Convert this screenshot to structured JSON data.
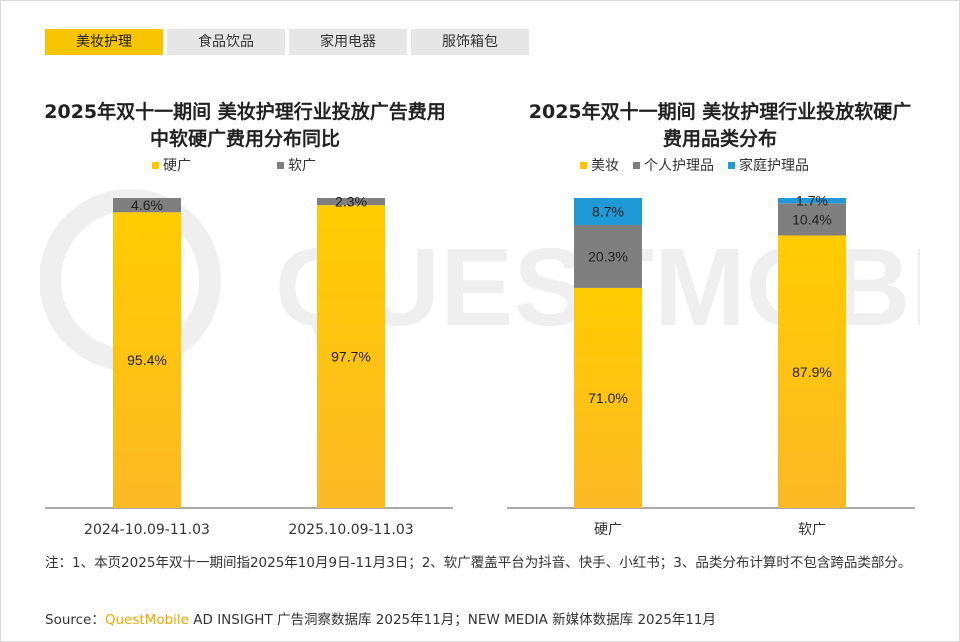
{
  "tabs": [
    {
      "label": "美妆护理",
      "active": true
    },
    {
      "label": "食品饮品",
      "active": false
    },
    {
      "label": "家用电器",
      "active": false
    },
    {
      "label": "服饰箱包",
      "active": false
    }
  ],
  "colors": {
    "accent": "#f7c400",
    "bar_yellow_top": "#ffcc00",
    "bar_yellow_bottom": "#fbb925",
    "gray": "#7f7f7f",
    "blue": "#1f9ad6"
  },
  "chart_data": [
    {
      "type": "bar",
      "stacked": true,
      "title": "2025年双十一期间 美妆护理行业投放广告费用中软硬广费用分布同比",
      "categories": [
        "2024-10.09-11.03",
        "2025.10.09-11.03"
      ],
      "series": [
        {
          "name": "硬广",
          "values": [
            95.4,
            97.7
          ],
          "labels": [
            "95.4%",
            "97.7%"
          ],
          "color": "#ffc600"
        },
        {
          "name": "软广",
          "values": [
            4.6,
            2.3
          ],
          "labels": [
            "4.6%",
            "2.3%"
          ],
          "color": "#7f7f7f"
        }
      ],
      "ylim": [
        0,
        100
      ],
      "legend": "top-center",
      "grid": false
    },
    {
      "type": "bar",
      "stacked": true,
      "title": "2025年双十一期间 美妆护理行业投放软硬广费用品类分布",
      "categories": [
        "硬广",
        "软广"
      ],
      "series": [
        {
          "name": "美妆",
          "values": [
            71.0,
            87.9
          ],
          "labels": [
            "71.0%",
            "87.9%"
          ],
          "color": "#ffc600"
        },
        {
          "name": "个人护理品",
          "values": [
            20.3,
            10.4
          ],
          "labels": [
            "20.3%",
            "10.4%"
          ],
          "color": "#7f7f7f"
        },
        {
          "name": "家庭护理品",
          "values": [
            8.7,
            1.7
          ],
          "labels": [
            "8.7%",
            "1.7%"
          ],
          "color": "#1f9ad6"
        }
      ],
      "ylim": [
        0,
        100
      ],
      "legend": "top-center",
      "grid": false
    }
  ],
  "note": "注：1、本页2025年双十一期间指2025年10月9日-11月3日；2、软广覆盖平台为抖音、快手、小红书；3、品类分布计算时不包含跨品类部分。",
  "source": {
    "prefix": "Source：",
    "brand": "QuestMobile",
    "rest": " AD INSIGHT 广告洞察数据库 2025年11月；NEW MEDIA 新媒体数据库 2025年11月"
  },
  "watermark": "QUESTMOBILE"
}
